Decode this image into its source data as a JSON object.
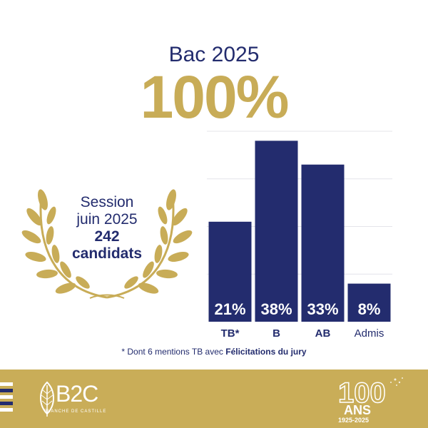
{
  "header": {
    "title": "Bac 2025",
    "big_value": "100%"
  },
  "session": {
    "line1": "Session",
    "line2": "juin 2025",
    "line3": "242",
    "line4": "candidats"
  },
  "chart_data": {
    "type": "bar",
    "categories": [
      "TB*",
      "B",
      "AB",
      "Admis"
    ],
    "values": [
      21,
      38,
      33,
      8
    ],
    "value_labels": [
      "21%",
      "38%",
      "33%",
      "8%"
    ],
    "ylim": [
      0,
      40
    ],
    "grid": true,
    "bar_color": "#232c6e",
    "title": "",
    "xlabel": "",
    "ylabel": ""
  },
  "footnote": {
    "prefix": "* Dont 6 mentions TB avec ",
    "bold": "Félicitations du jury"
  },
  "footer": {
    "bg_color": "#c9ad58",
    "logo_text": "B2C",
    "logo_sub": "BLANCHE DE CASTILLE",
    "anniv_number": "100",
    "anniv_word": "ANS",
    "anniv_years": "1925-2025"
  }
}
